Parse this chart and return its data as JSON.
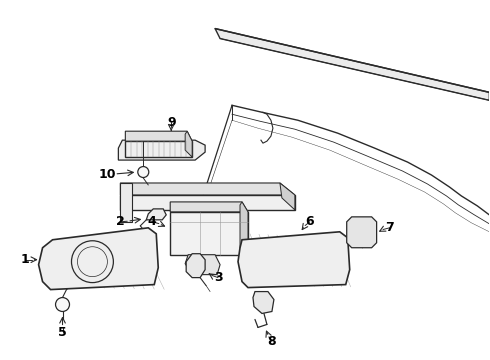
{
  "bg_color": "#ffffff",
  "line_color": "#2a2a2a",
  "label_color": "#000000",
  "lw": 0.9
}
